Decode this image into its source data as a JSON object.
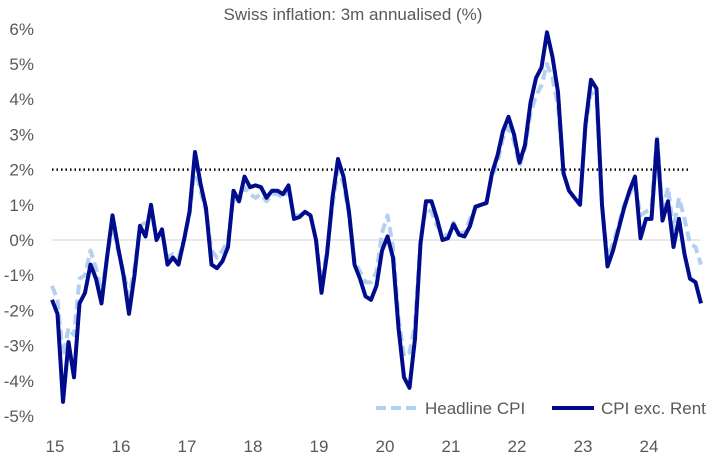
{
  "chart_data": {
    "type": "line",
    "title": "Swiss inflation: 3m annualised (%)",
    "xlabel": "",
    "ylabel": "",
    "x_start": "2015-01",
    "frequency": "monthly",
    "x_tick_labels": [
      "15",
      "16",
      "17",
      "18",
      "19",
      "20",
      "21",
      "22",
      "23",
      "24"
    ],
    "y_tick_labels": [
      "6%",
      "5%",
      "4%",
      "3%",
      "2%",
      "1%",
      "0%",
      "-1%",
      "-2%",
      "-3%",
      "-4%",
      "-5%"
    ],
    "ylim": [
      -5,
      6
    ],
    "reference_line": {
      "value": 2,
      "style": "dotted",
      "color": "#000000"
    },
    "grid": false,
    "legend_position": "bottom-right",
    "series": [
      {
        "name": "Headline CPI",
        "color": "#b4d0f0",
        "style": "dashed",
        "values": [
          -1.3,
          -1.7,
          -3.3,
          -2.5,
          -2.7,
          -1.1,
          -1.0,
          -0.3,
          -0.8,
          -1.5,
          -0.5,
          0.4,
          -0.3,
          -0.9,
          -1.6,
          -0.8,
          0.4,
          0.5,
          0.8,
          0.1,
          0.2,
          -0.5,
          -0.4,
          -0.5,
          0.0,
          0.7,
          2.1,
          1.4,
          0.8,
          -0.3,
          -0.5,
          -0.3,
          0.0,
          1.2,
          1.1,
          1.5,
          1.3,
          1.2,
          1.3,
          1.1,
          1.3,
          1.3,
          1.2,
          1.4,
          0.7,
          0.7,
          0.8,
          0.7,
          0.0,
          -1.2,
          -0.3,
          1.0,
          2.0,
          1.6,
          0.7,
          -0.6,
          -0.9,
          -1.2,
          -1.2,
          -0.9,
          0.2,
          0.7,
          -0.2,
          -2.2,
          -3.3,
          -3.2,
          -2.4,
          0.0,
          0.9,
          0.8,
          0.4,
          0.2,
          0.1,
          0.5,
          0.2,
          0.2,
          0.6,
          0.9,
          1.0,
          1.1,
          1.8,
          2.2,
          2.9,
          3.2,
          2.8,
          2.1,
          2.6,
          3.6,
          4.1,
          4.4,
          5.0,
          4.6,
          3.8,
          1.9,
          1.4,
          1.2,
          1.0,
          3.2,
          4.2,
          4.0,
          1.0,
          -0.5,
          -0.1,
          0.4,
          1.0,
          1.3,
          1.6,
          0.7,
          0.8,
          0.9,
          3.0,
          0.8,
          1.5,
          0.3,
          1.2,
          0.6,
          -0.1,
          -0.2,
          -0.7
        ]
      },
      {
        "name": "CPI exc. Rent",
        "color": "#000c8c",
        "style": "solid",
        "values": [
          -1.7,
          -2.1,
          -4.6,
          -2.9,
          -3.9,
          -1.8,
          -1.5,
          -0.7,
          -1.1,
          -1.8,
          -0.5,
          0.7,
          -0.2,
          -1.0,
          -2.1,
          -1.0,
          0.4,
          0.1,
          1.0,
          0.0,
          0.3,
          -0.7,
          -0.5,
          -0.7,
          0.0,
          0.8,
          2.5,
          1.6,
          0.9,
          -0.7,
          -0.8,
          -0.6,
          -0.2,
          1.4,
          1.1,
          1.8,
          1.5,
          1.55,
          1.5,
          1.2,
          1.4,
          1.4,
          1.3,
          1.55,
          0.6,
          0.65,
          0.8,
          0.7,
          0.0,
          -1.5,
          -0.4,
          1.2,
          2.3,
          1.8,
          0.8,
          -0.7,
          -1.1,
          -1.6,
          -1.7,
          -1.3,
          -0.3,
          0.1,
          -0.5,
          -2.5,
          -3.9,
          -4.2,
          -2.8,
          -0.1,
          1.1,
          1.1,
          0.6,
          0.0,
          0.05,
          0.45,
          0.15,
          0.1,
          0.4,
          0.95,
          1.0,
          1.05,
          1.9,
          2.4,
          3.1,
          3.5,
          3.0,
          2.2,
          2.7,
          3.9,
          4.6,
          4.9,
          5.9,
          5.2,
          4.2,
          1.9,
          1.4,
          1.2,
          1.0,
          3.3,
          4.55,
          4.3,
          1.0,
          -0.75,
          -0.3,
          0.3,
          0.9,
          1.4,
          1.8,
          0.05,
          0.6,
          0.6,
          2.85,
          0.55,
          1.1,
          -0.2,
          0.6,
          -0.4,
          -1.1,
          -1.2,
          -1.8
        ]
      }
    ]
  }
}
